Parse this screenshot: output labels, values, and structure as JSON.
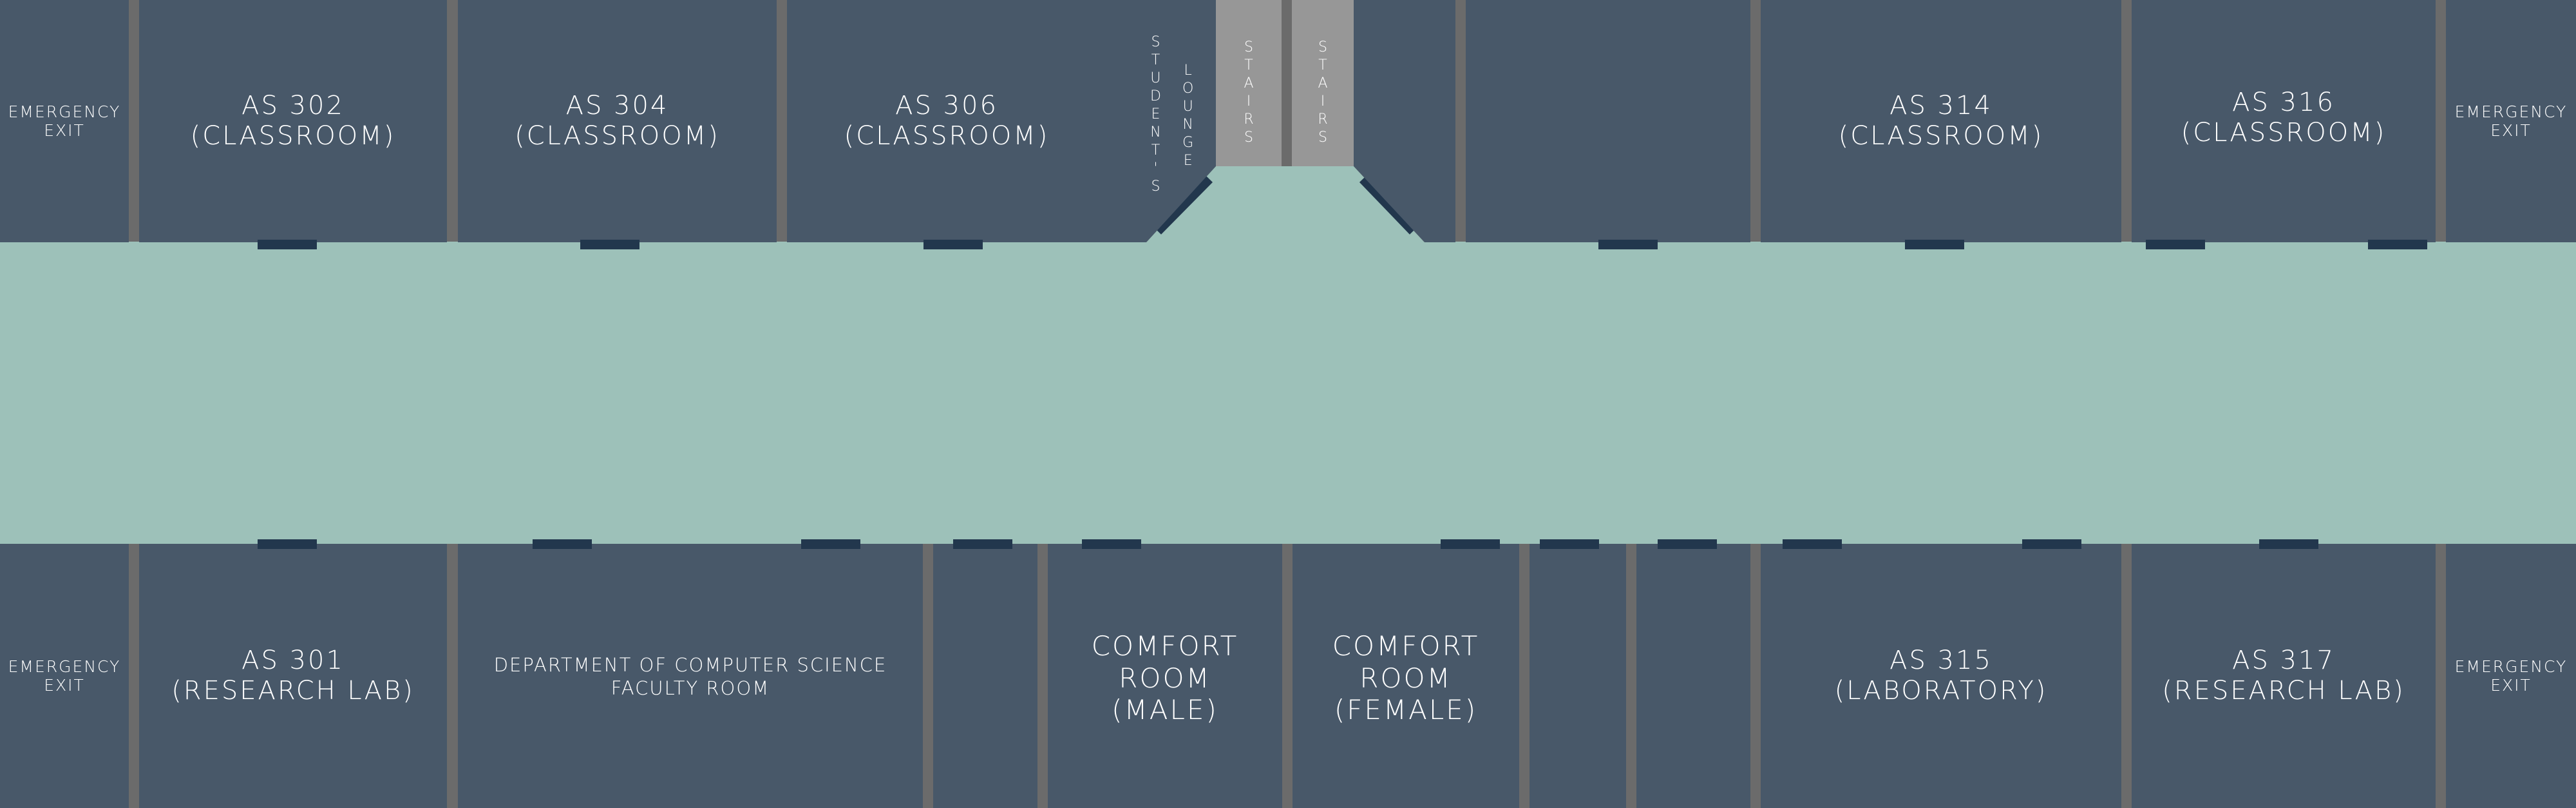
{
  "colors": {
    "room": "#485869",
    "hallway": "#9dc1b9",
    "wall": "#6b6b6b",
    "stairs": "#979797",
    "door": "#22374d",
    "label": "#ffffff"
  },
  "top_rooms": {
    "emergency_exit_left": [
      "EMERGENCY",
      "EXIT"
    ],
    "as302": [
      "AS 302",
      "(CLASSROOM)"
    ],
    "as304": [
      "AS 304",
      "(CLASSROOM)"
    ],
    "as306": [
      "AS 306",
      "(CLASSROOM)"
    ],
    "students_lounge": {
      "col1": [
        "S",
        "T",
        "U",
        "D",
        "E",
        "N",
        "T",
        "'",
        "S"
      ],
      "col2": [
        "L",
        "O",
        "U",
        "N",
        "G",
        "E"
      ]
    },
    "stairs_left": [
      "S",
      "T",
      "A",
      "I",
      "R",
      "S"
    ],
    "stairs_right": [
      "S",
      "T",
      "A",
      "I",
      "R",
      "S"
    ],
    "as314": [
      "AS 314",
      "(CLASSROOM)"
    ],
    "as316": [
      "AS 316",
      "(CLASSROOM)"
    ],
    "emergency_exit_right": [
      "EMERGENCY",
      "EXIT"
    ]
  },
  "bottom_rooms": {
    "emergency_exit_left": [
      "EMERGENCY",
      "EXIT"
    ],
    "as301": [
      "AS 301",
      "(RESEARCH LAB)"
    ],
    "cs_faculty": [
      "DEPARTMENT OF COMPUTER SCIENCE",
      "FACULTY ROOM"
    ],
    "comfort_male": [
      "COMFORT",
      "ROOM",
      "(MALE)"
    ],
    "comfort_female": [
      "COMFORT",
      "ROOM",
      "(FEMALE)"
    ],
    "as315": [
      "AS 315",
      "(LABORATORY)"
    ],
    "as317": [
      "AS 317",
      "(RESEARCH LAB)"
    ],
    "emergency_exit_right": [
      "EMERGENCY",
      "EXIT"
    ]
  }
}
